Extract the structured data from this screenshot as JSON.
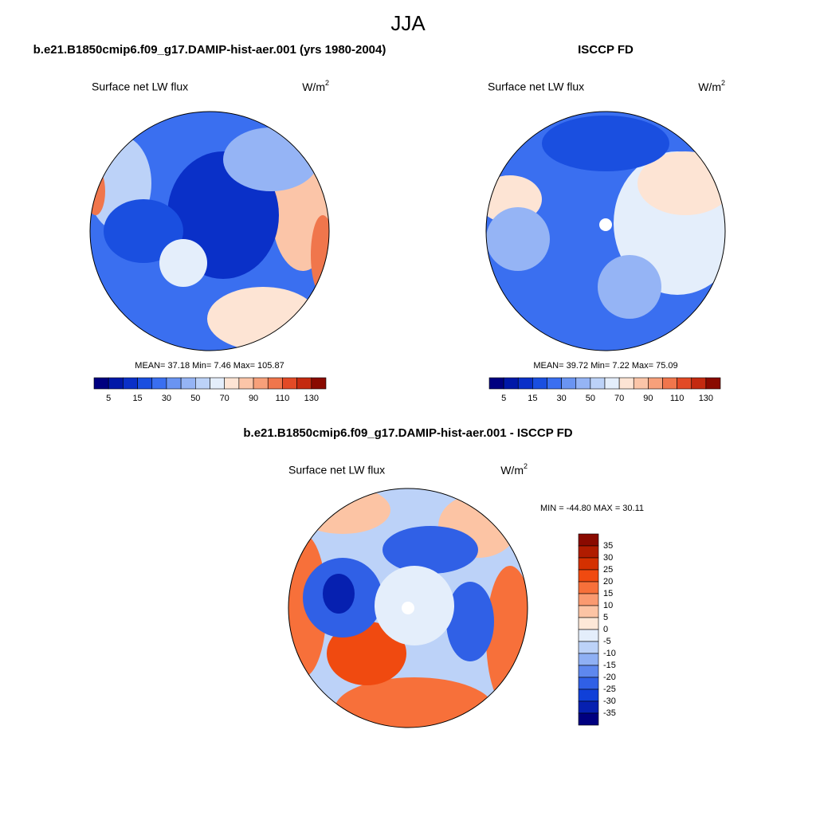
{
  "title": "JJA",
  "panels": [
    {
      "title": "b.e21.B1850cmip6.f09_g17.DAMIP-hist-aer.001 (yrs 1980-2004)",
      "field": "Surface net LW flux",
      "units": "W/m",
      "units_sup": "2",
      "stats": "MEAN=  37.18  Min=   7.46  Max= 105.87",
      "colorbar": {
        "labels": [
          "5",
          "15",
          "30",
          "50",
          "70",
          "90",
          "110",
          "130"
        ],
        "colors": [
          "#000080",
          "#0018a8",
          "#0a30c8",
          "#1a4fe0",
          "#3a6ff0",
          "#6a94f2",
          "#95b4f5",
          "#bcd2f8",
          "#e4eefb",
          "#fde4d4",
          "#fbc5a8",
          "#f7a07a",
          "#f0764c",
          "#e24a26",
          "#c42a10",
          "#8a0a00"
        ]
      }
    },
    {
      "title": "ISCCP FD",
      "field": "Surface net LW flux",
      "units": "W/m",
      "units_sup": "2",
      "stats": "MEAN=  39.72  Min=   7.22  Max=  75.09",
      "colorbar": {
        "labels": [
          "5",
          "15",
          "30",
          "50",
          "70",
          "90",
          "110",
          "130"
        ],
        "colors": [
          "#000080",
          "#0018a8",
          "#0a30c8",
          "#1a4fe0",
          "#3a6ff0",
          "#6a94f2",
          "#95b4f5",
          "#bcd2f8",
          "#e4eefb",
          "#fde4d4",
          "#fbc5a8",
          "#f7a07a",
          "#f0764c",
          "#e24a26",
          "#c42a10",
          "#8a0a00"
        ]
      }
    }
  ],
  "difference": {
    "title": "b.e21.B1850cmip6.f09_g17.DAMIP-hist-aer.001 - ISCCP FD",
    "field": "Surface net LW flux",
    "units": "W/m",
    "units_sup": "2",
    "stats": "MIN = -44.80 MAX =  30.11",
    "colorbar": {
      "labels": [
        "35",
        "30",
        "25",
        "20",
        "15",
        "10",
        "5",
        "0",
        "-5",
        "-10",
        "-15",
        "-20",
        "-25",
        "-30",
        "-35"
      ],
      "colors": [
        "#8a0a00",
        "#b01c00",
        "#d43000",
        "#f04a10",
        "#f7703a",
        "#fa9a70",
        "#fcc4a4",
        "#fde8d8",
        "#e4eefb",
        "#bcd2f8",
        "#8fb0f4",
        "#5e88ee",
        "#3060e6",
        "#1040d8",
        "#0620b0",
        "#000080"
      ]
    }
  }
}
